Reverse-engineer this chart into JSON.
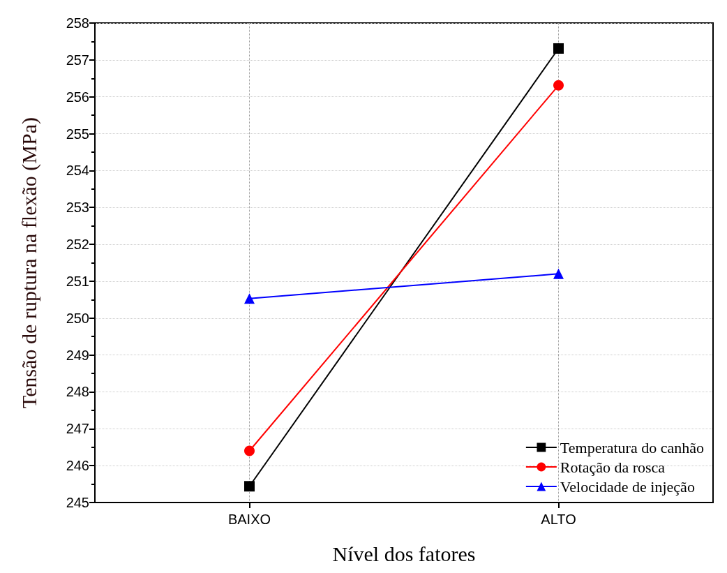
{
  "chart_data": {
    "type": "line",
    "xlabel": "Nível dos fatores",
    "ylabel": "Tensão de ruptura na flexão (MPa)",
    "categories": [
      "BAIXO",
      "ALTO"
    ],
    "series": [
      {
        "name": "Temperatura do canhão",
        "color": "#000000",
        "marker": "square",
        "values": [
          245.44,
          257.31
        ]
      },
      {
        "name": "Rotação da rosca",
        "color": "#ff0000",
        "marker": "circle",
        "values": [
          246.4,
          256.31
        ]
      },
      {
        "name": "Velocidade de injeção",
        "color": "#0000ff",
        "marker": "triangle",
        "values": [
          250.53,
          251.2
        ]
      }
    ],
    "ylim": [
      245,
      258
    ],
    "yticks": [
      245,
      246,
      247,
      248,
      249,
      250,
      251,
      252,
      253,
      254,
      255,
      256,
      257,
      258
    ],
    "grid": true,
    "legend": "bottom right",
    "line_style": "solid"
  }
}
